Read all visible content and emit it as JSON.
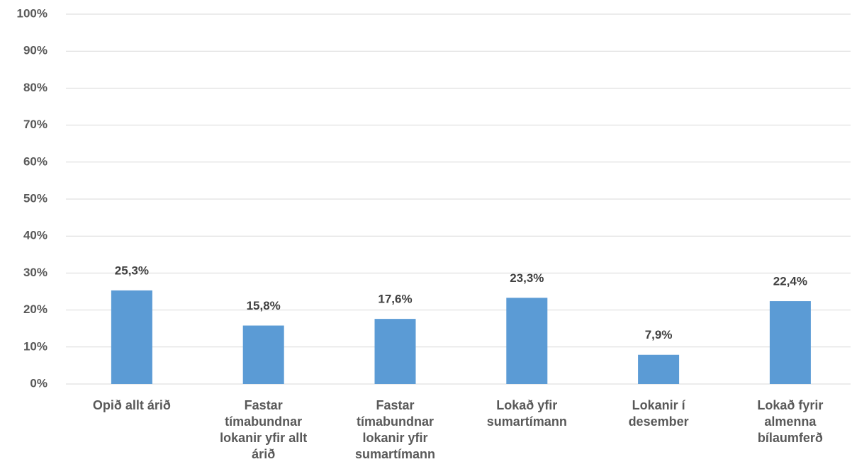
{
  "chart_data": {
    "type": "bar",
    "categories": [
      "Opið allt árið",
      "Fastar tímabundnar lokanir yfir allt árið",
      "Fastar tímabundnar lokanir yfir sumartímann",
      "Lokað yfir sumartímann",
      "Lokanir í desember",
      "Lokað fyrir almenna bílaumferð"
    ],
    "values": [
      25.3,
      15.8,
      17.6,
      23.3,
      7.9,
      22.4
    ],
    "value_labels": [
      "25,3%",
      "15,8%",
      "17,6%",
      "23,3%",
      "7,9%",
      "22,4%"
    ],
    "color": "#5b9bd5",
    "ylim": [
      0,
      100
    ],
    "yticks": [
      {
        "value": 0,
        "label": "0%"
      },
      {
        "value": 10,
        "label": "10%"
      },
      {
        "value": 20,
        "label": "20%"
      },
      {
        "value": 30,
        "label": "30%"
      },
      {
        "value": 40,
        "label": "40%"
      },
      {
        "value": 50,
        "label": "50%"
      },
      {
        "value": 60,
        "label": "60%"
      },
      {
        "value": 70,
        "label": "70%"
      },
      {
        "value": 80,
        "label": "80%"
      },
      {
        "value": 90,
        "label": "90%"
      },
      {
        "value": 100,
        "label": "100%"
      }
    ],
    "grid": true
  }
}
